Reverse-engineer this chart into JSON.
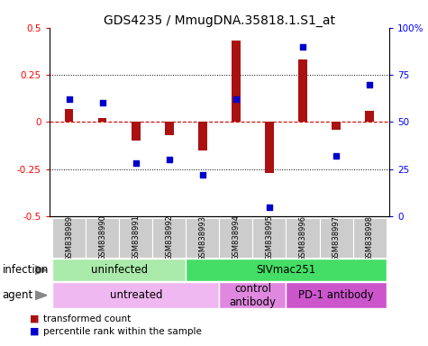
{
  "title": "GDS4235 / MmugDNA.35818.1.S1_at",
  "samples": [
    "GSM838989",
    "GSM838990",
    "GSM838991",
    "GSM838992",
    "GSM838993",
    "GSM838994",
    "GSM838995",
    "GSM838996",
    "GSM838997",
    "GSM838998"
  ],
  "bar_values": [
    0.07,
    0.02,
    -0.1,
    -0.07,
    -0.15,
    0.43,
    -0.27,
    0.33,
    -0.04,
    0.06
  ],
  "dot_values": [
    62,
    60,
    28,
    30,
    22,
    62,
    5,
    90,
    32,
    70
  ],
  "bar_color": "#aa1111",
  "dot_color": "#0000cc",
  "ylim": [
    -0.5,
    0.5
  ],
  "yticks_left": [
    -0.5,
    -0.25,
    0.0,
    0.25,
    0.5
  ],
  "yticks_right": [
    0,
    25,
    50,
    75,
    100
  ],
  "hlines": [
    0.25,
    -0.25
  ],
  "hline_zero_color": "#cc0000",
  "hline_dotted_color": "black",
  "infection_groups": [
    {
      "label": "uninfected",
      "start": 0,
      "end": 4,
      "color": "#aaeaaa"
    },
    {
      "label": "SIVmac251",
      "start": 4,
      "end": 10,
      "color": "#44dd66"
    }
  ],
  "agent_groups": [
    {
      "label": "untreated",
      "start": 0,
      "end": 5,
      "color": "#f0b8f0"
    },
    {
      "label": "control\nantibody",
      "start": 5,
      "end": 7,
      "color": "#e088e0"
    },
    {
      "label": "PD-1 antibody",
      "start": 7,
      "end": 10,
      "color": "#cc55cc"
    }
  ],
  "legend_items": [
    {
      "label": "transformed count",
      "color": "#aa1111"
    },
    {
      "label": "percentile rank within the sample",
      "color": "#0000cc"
    }
  ],
  "background_color": "#ffffff",
  "title_fontsize": 10,
  "tick_fontsize": 7.5,
  "label_fontsize": 8.5,
  "sample_fontsize": 6,
  "legend_fontsize": 7.5
}
